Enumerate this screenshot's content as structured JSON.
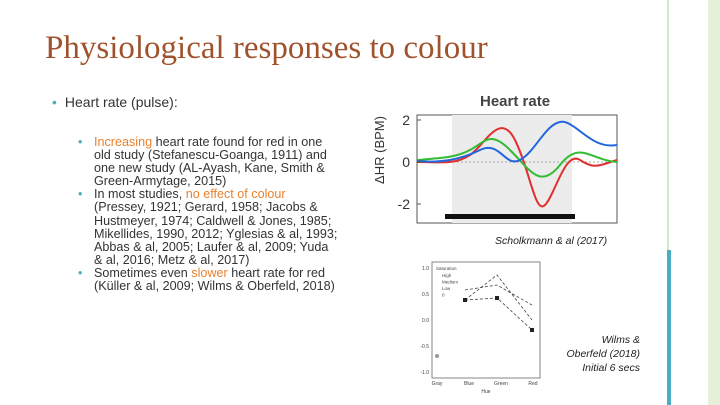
{
  "title": "Physiological responses to colour",
  "bullet": "Heart rate (pulse):",
  "sub_bullets": [
    {
      "parts": [
        "Increasing",
        " heart rate found for red in one old study (Stefanescu-Goanga, 1911) and one new study (AL-Ayash, Kane, Smith & Green-Armytage, 2015)"
      ]
    },
    {
      "parts": [
        "In most studies, ",
        "no effect of colour",
        " (Pressey, 1921; Gerard, 1958; Jacobs & Hustmeyer, 1974; Caldwell & Jones, 1985; Mikellides, 1990, 2012; Yglesias & al, 1993; Abbas & al, 2005; Laufer & al, 2009; Yuda & al, 2016; Metz & al, 2017)"
      ]
    },
    {
      "parts": [
        "Sometimes even ",
        "slower",
        " heart rate for red (Küller & al, 2009; Wilms & Oberfeld, 2018)"
      ]
    }
  ],
  "figure1": {
    "title": "Heart rate",
    "ylabel": "ΔHR (BPM)",
    "yticks": [
      2,
      0,
      -2
    ],
    "caption": "Scholkmann & al (2017)"
  },
  "figure2": {
    "xlabel": "Hue",
    "categories": [
      "Gray",
      "Blue",
      "Green",
      "Red"
    ],
    "yticks": [
      "1.0",
      "0.5",
      "0.0",
      "-0.5",
      "-1.0"
    ],
    "legend_title": "Saturation",
    "legend": [
      "High",
      "Medium",
      "Low",
      "0"
    ],
    "caption": [
      "Wilms &",
      "Oberfeld (2018)",
      "Initial 6 secs"
    ]
  }
}
